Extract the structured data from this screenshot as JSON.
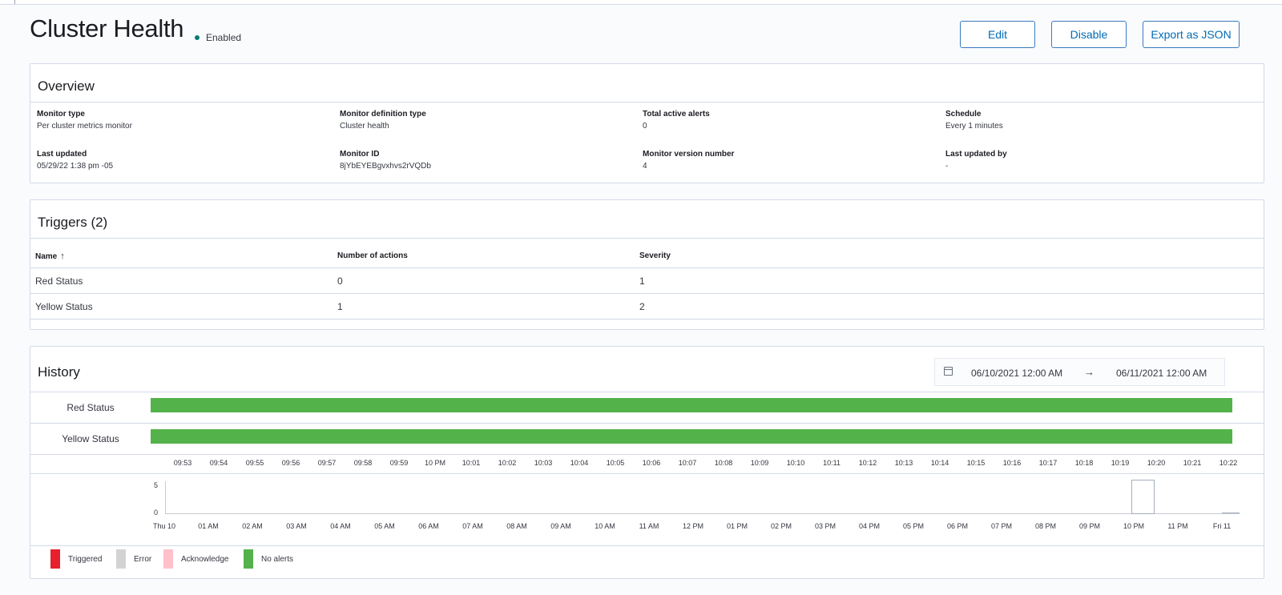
{
  "header": {
    "title": "Cluster Health",
    "status": "Enabled",
    "buttons": {
      "edit": "Edit",
      "disable": "Disable",
      "export": "Export as JSON"
    }
  },
  "overview": {
    "title": "Overview",
    "fields": [
      {
        "label": "Monitor type",
        "value": "Per cluster metrics monitor"
      },
      {
        "label": "Monitor definition type",
        "value": "Cluster health"
      },
      {
        "label": "Total active alerts",
        "value": "0"
      },
      {
        "label": "Schedule",
        "value": "Every 1 minutes"
      },
      {
        "label": "Last updated",
        "value": "05/29/22 1:38 pm -05"
      },
      {
        "label": "Monitor ID",
        "value": "8jYbEYEBgvxhvs2rVQDb"
      },
      {
        "label": "Monitor version number",
        "value": "4"
      },
      {
        "label": "Last updated by",
        "value": "-"
      }
    ]
  },
  "triggers": {
    "title": "Triggers (2)",
    "columns": {
      "name": "Name",
      "sort_icon": "↑",
      "actions": "Number of actions",
      "severity": "Severity"
    },
    "rows": [
      {
        "name": "Red Status",
        "actions": "0",
        "severity": "1"
      },
      {
        "name": "Yellow Status",
        "actions": "1",
        "severity": "2"
      }
    ]
  },
  "history": {
    "title": "History",
    "date_range": {
      "start": "06/10/2021 12:00 AM",
      "arrow": "→",
      "end": "06/11/2021 12:00 AM"
    },
    "timeline_rows": [
      {
        "label": "Red Status",
        "state": "No alerts"
      },
      {
        "label": "Yellow Status",
        "state": "No alerts"
      }
    ],
    "top_ticks": [
      "09:53",
      "09:54",
      "09:55",
      "09:56",
      "09:57",
      "09:58",
      "09:59",
      "10 PM",
      "10:01",
      "10:02",
      "10:03",
      "10:04",
      "10:05",
      "10:06",
      "10:07",
      "10:08",
      "10:09",
      "10:10",
      "10:11",
      "10:12",
      "10:13",
      "10:14",
      "10:15",
      "10:16",
      "10:17",
      "10:18",
      "10:19",
      "10:20",
      "10:21",
      "10:22"
    ],
    "bottom_ticks": [
      "Thu 10",
      "01 AM",
      "02 AM",
      "03 AM",
      "04 AM",
      "05 AM",
      "06 AM",
      "07 AM",
      "08 AM",
      "09 AM",
      "10 AM",
      "11 AM",
      "12 PM",
      "01 PM",
      "02 PM",
      "03 PM",
      "04 PM",
      "05 PM",
      "06 PM",
      "07 PM",
      "08 PM",
      "09 PM",
      "10 PM",
      "11 PM",
      "Fri 11"
    ],
    "y_ticks": [
      "5",
      "0"
    ],
    "legend": [
      {
        "label": "Triggered",
        "color": "#e7202d"
      },
      {
        "label": "Error",
        "color": "#d3d3d3"
      },
      {
        "label": "Acknowledge",
        "color": "#ffc0cb"
      },
      {
        "label": "No alerts",
        "color": "#54b24a"
      }
    ]
  }
}
